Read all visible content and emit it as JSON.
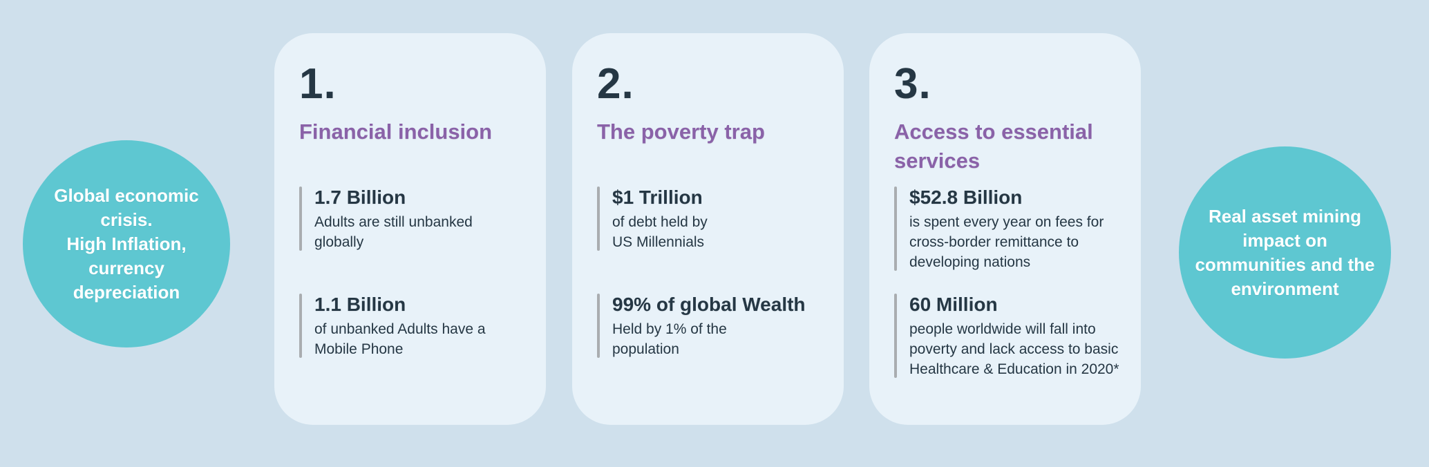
{
  "palette": {
    "bg": "#cfe0ec",
    "card": "#e8f2f9",
    "teal": "#5ec7d1",
    "purple": "#8a62a8",
    "dark": "#253744",
    "bar": "#a9adb0",
    "white": "#ffffff"
  },
  "left_circle": {
    "text": "Global economic\ncrisis.\nHigh Inflation,\ncurrency\ndepreciation"
  },
  "right_circle": {
    "text": "Real asset  mining\nimpact on\ncommunities and the\nenvironment"
  },
  "cards": [
    {
      "number": "1.",
      "title": "Financial inclusion",
      "stats": [
        {
          "value": "1.7 Billion",
          "description": "Adults are still unbanked\nglobally"
        },
        {
          "value": "1.1 Billion",
          "description": "of unbanked Adults have a\nMobile Phone"
        }
      ]
    },
    {
      "number": "2.",
      "title": "The poverty trap",
      "stats": [
        {
          "value": "$1 Trillion",
          "description": "of debt held by\nUS Millennials"
        },
        {
          "value": "99% of global Wealth",
          "description": "Held by 1% of the\npopulation"
        }
      ]
    },
    {
      "number": "3.",
      "title": "Access to essential\nservices",
      "stats": [
        {
          "value": "$52.8 Billion",
          "description": "is spent every year on fees for\ncross-border remittance to\ndeveloping nations"
        },
        {
          "value": "60 Million",
          "description": "people worldwide will fall into\npoverty and lack access to basic\nHealthcare & Education in 2020*"
        }
      ]
    }
  ]
}
